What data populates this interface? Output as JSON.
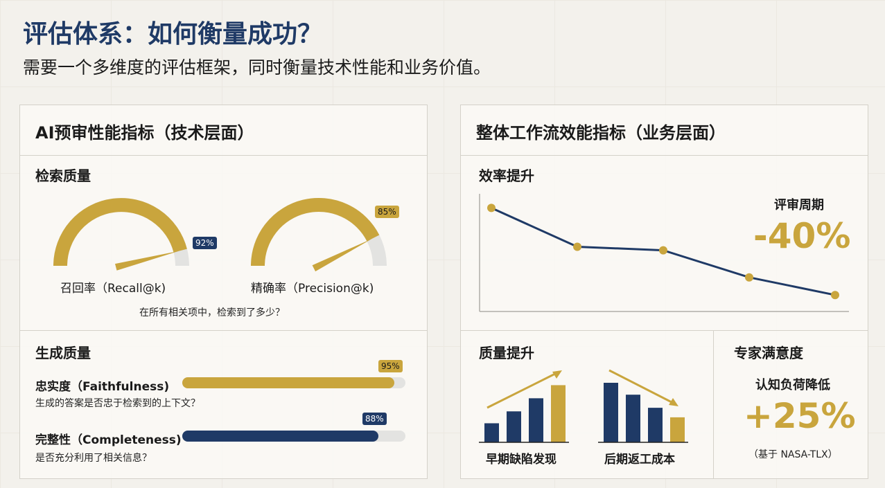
{
  "header": {
    "title": "评估体系：如何衡量成功？",
    "subtitle": "需要一个多维度的评估框架，同时衡量技术性能和业务价值。"
  },
  "colors": {
    "navy": "#1f3a66",
    "gold": "#c9a53d",
    "track": "#e3e3e1"
  },
  "left_panel": {
    "title": "AI预审性能指标（技术层面）",
    "retrieval": {
      "title": "检索质量",
      "recall": {
        "label": "召回率（Recall@k)",
        "value_label": "92%",
        "value": 0.92
      },
      "precision": {
        "label": "精确率（Precision@k)",
        "value_label": "85%",
        "value": 0.85
      },
      "caption": "在所有相关项中，检索到了多少？"
    },
    "generation": {
      "title": "生成质量",
      "faithfulness": {
        "label": "忠实度（Faithfulness)",
        "value_label": "95%",
        "value": 0.95,
        "desc": "生成的答案是否忠于检索到的上下文？"
      },
      "completeness": {
        "label": "完整性（Completeness)",
        "value_label": "88%",
        "value": 0.88,
        "desc": "是否充分利用了相关信息？"
      }
    }
  },
  "right_panel": {
    "title": "整体工作流效能指标（业务层面）",
    "efficiency": {
      "title": "效率提升",
      "metric_label": "评审周期",
      "metric_value": "-40%",
      "trend": [
        0.88,
        0.55,
        0.52,
        0.29,
        0.14
      ]
    },
    "quality": {
      "title": "质量提升",
      "early": {
        "label": "早期缺陷发现",
        "values": [
          0.32,
          0.52,
          0.74,
          0.96
        ]
      },
      "late": {
        "label": "后期返工成本",
        "values": [
          1.0,
          0.8,
          0.58,
          0.42
        ]
      }
    },
    "satisfaction": {
      "title": "专家满意度",
      "label": "认知负荷降低",
      "value": "+25%",
      "note": "（基于 NASA-TLX）"
    }
  }
}
